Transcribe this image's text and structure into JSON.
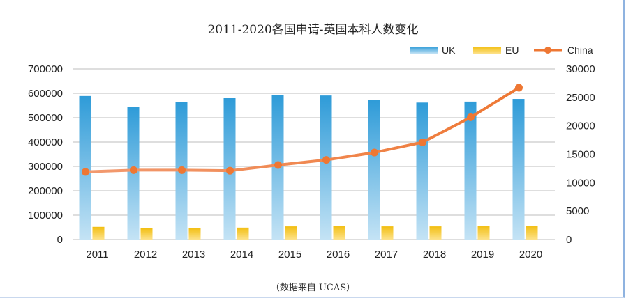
{
  "chart_data": {
    "type": "bar",
    "title": "2011-2020各国申请-英国本科人数变化",
    "source_note": "（数据来自 UCAS）",
    "categories": [
      "2011",
      "2012",
      "2013",
      "2014",
      "2015",
      "2016",
      "2017",
      "2018",
      "2019",
      "2020"
    ],
    "series": [
      {
        "name": "UK",
        "type": "bar",
        "axis": "left",
        "color": "#3aa3dc",
        "values": [
          589000,
          545000,
          564000,
          580000,
          594000,
          591000,
          573000,
          562000,
          566000,
          577000
        ]
      },
      {
        "name": "EU",
        "type": "bar",
        "axis": "left",
        "color": "#f5c518",
        "values": [
          52000,
          46000,
          47000,
          49000,
          54000,
          57000,
          54000,
          54000,
          57000,
          57000
        ]
      },
      {
        "name": "China",
        "type": "line",
        "axis": "right",
        "color": "#ee7733",
        "values": [
          11900,
          12200,
          12200,
          12100,
          13100,
          14000,
          15300,
          17100,
          21500,
          26700
        ]
      }
    ],
    "ylim": [
      0,
      700000
    ],
    "yticks": [
      "0",
      "100000",
      "200000",
      "300000",
      "400000",
      "500000",
      "600000",
      "700000"
    ],
    "y2lim": [
      0,
      30000
    ],
    "y2ticks": [
      "0",
      "5000",
      "10000",
      "15000",
      "20000",
      "25000",
      "30000"
    ],
    "grid": true,
    "legend": "top-right"
  }
}
